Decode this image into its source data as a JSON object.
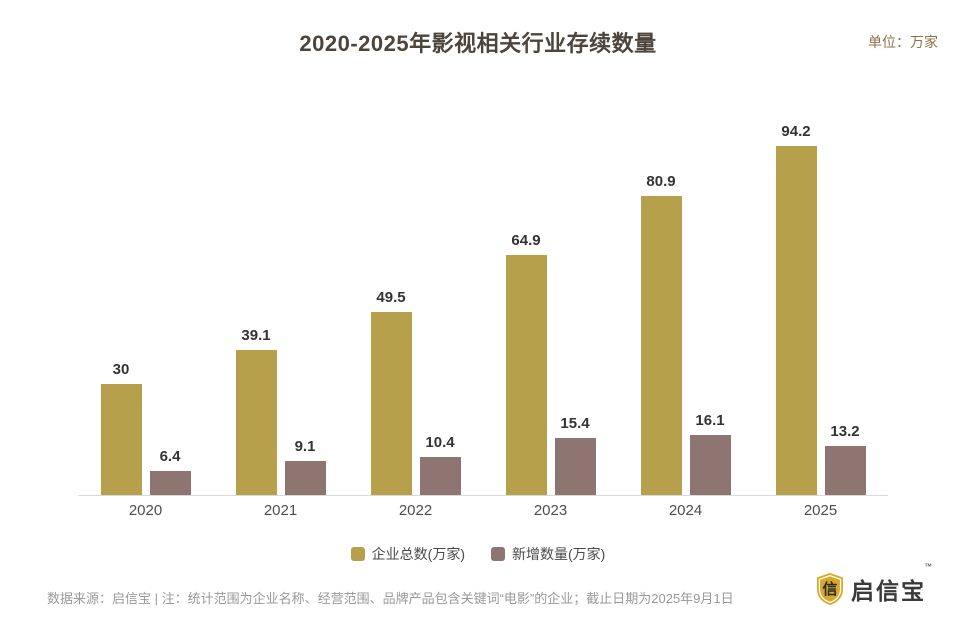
{
  "header": {
    "title": "2020-2025年影视相关行业存续数量",
    "unit_label": "单位：万家"
  },
  "chart_data": {
    "type": "bar",
    "title": "2020-2025年影视相关行业存续数量",
    "unit": "万家",
    "categories": [
      "2020",
      "2021",
      "2022",
      "2023",
      "2024",
      "2025"
    ],
    "series": [
      {
        "name": "企业总数(万家)",
        "color": "#B6A04C",
        "values": [
          30,
          39.1,
          49.5,
          64.9,
          80.9,
          94.2
        ]
      },
      {
        "name": "新增数量(万家)",
        "color": "#8E7572",
        "values": [
          6.4,
          9.1,
          10.4,
          15.4,
          16.1,
          13.2
        ]
      }
    ],
    "ylim": [
      0,
      107
    ],
    "grid": false,
    "y_axis_visible": false,
    "legend_position": "bottom",
    "value_labels": true
  },
  "footer": {
    "note": "数据来源：启信宝 | 注：统计范围为企业名称、经营范围、品牌产品包含关键词“电影”的企业；截止日期为2025年9月1日",
    "brand": {
      "name": "启信宝",
      "trademark": "™",
      "shield_char": "信"
    }
  },
  "colors": {
    "title_text": "#4D443B",
    "unit_text": "#8B7347",
    "axis_line": "#D9D9D9",
    "value_label_text": "#333333",
    "brand_gold": "#D9A826"
  }
}
